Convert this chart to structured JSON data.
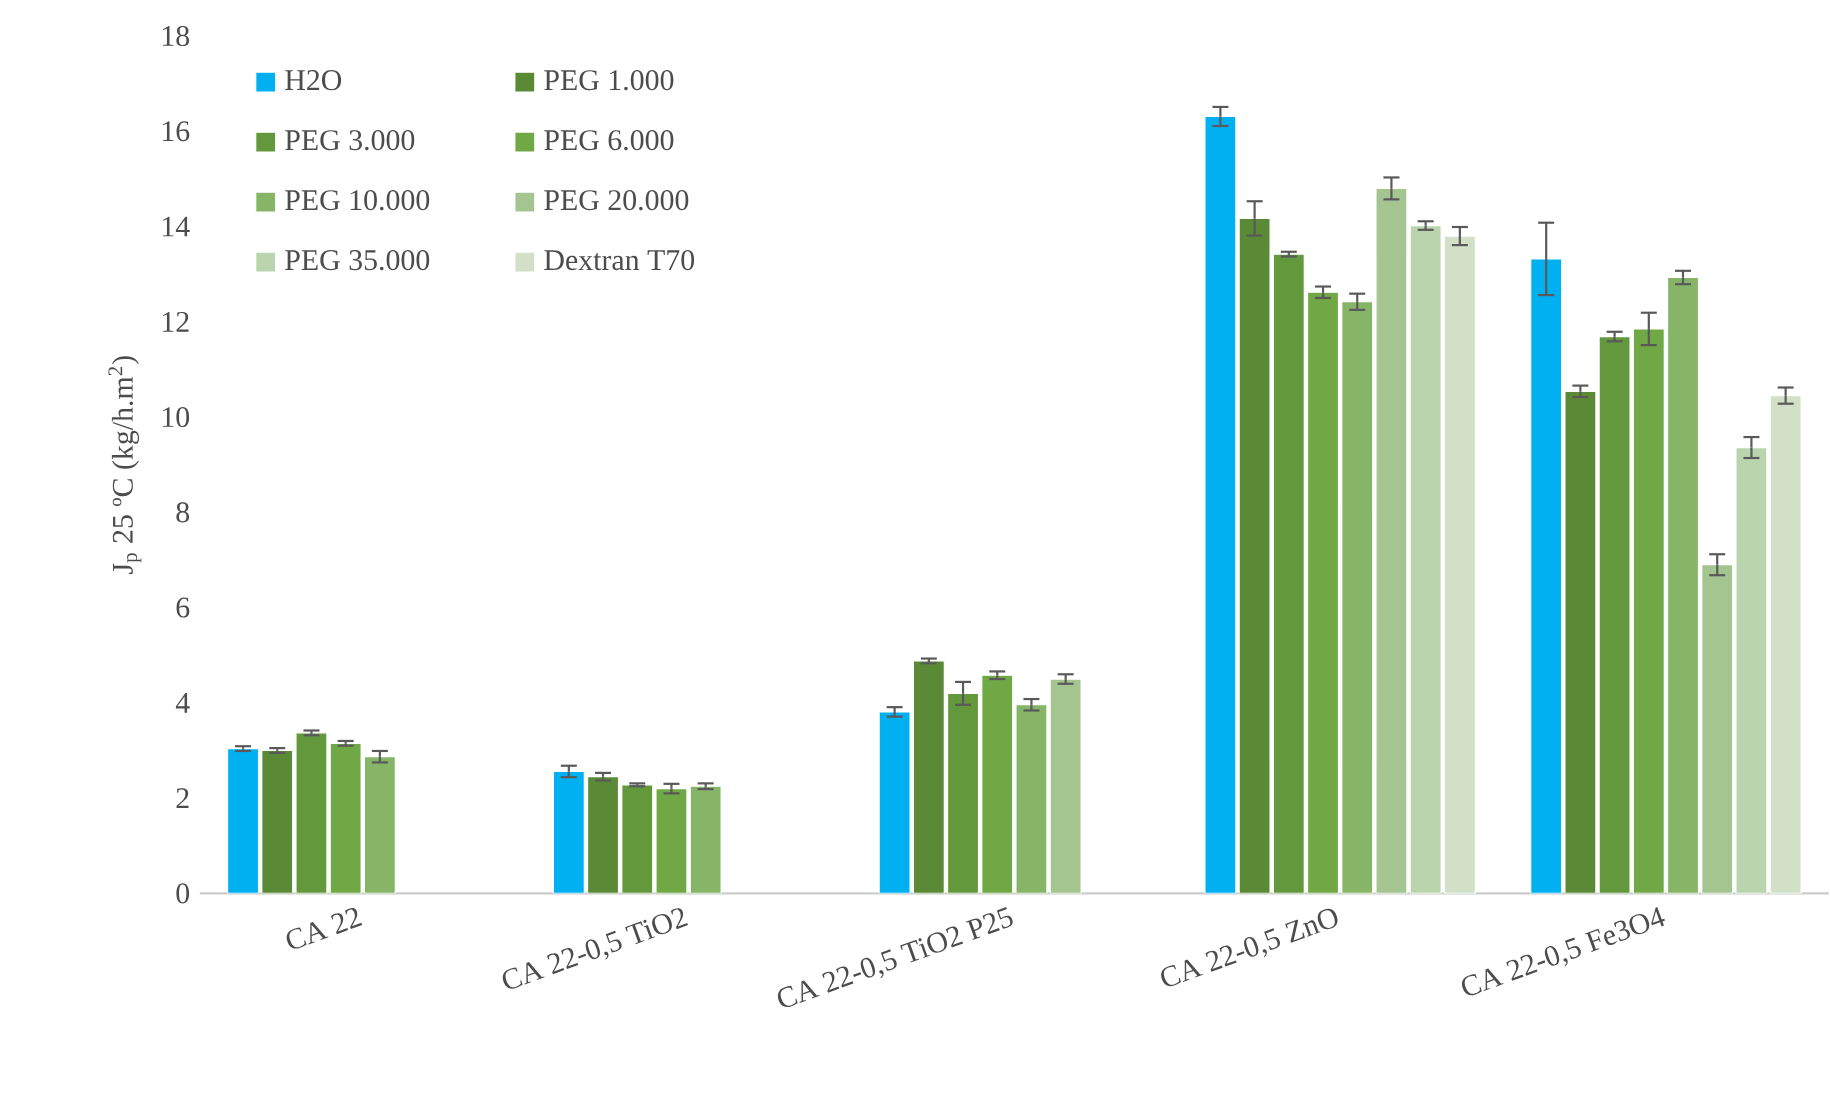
{
  "chart_data": {
    "type": "bar",
    "ylabel": "J$_{p}$ 25 ºC (kg/h.m$^{2}$)",
    "categories": [
      "CA 22",
      "CA 22-0,5 TiO2",
      "CA 22-0,5 TiO2 P25",
      "CA 22-0,5 ZnO",
      "CA 22-0,5 Fe3O4"
    ],
    "series": [
      {
        "name": "H2O",
        "color": "#00b0f0",
        "values": [
          3.04,
          2.56,
          3.81,
          16.31,
          13.32
        ],
        "errors": [
          0.05,
          0.12,
          0.1,
          0.2,
          0.76
        ]
      },
      {
        "name": "PEG 1.000",
        "color": "#5b8a37",
        "values": [
          3.0,
          2.45,
          4.88,
          14.17,
          10.54
        ],
        "errors": [
          0.05,
          0.08,
          0.05,
          0.36,
          0.12
        ]
      },
      {
        "name": "PEG 3.000",
        "color": "#64983d",
        "values": [
          3.37,
          2.28,
          4.2,
          13.42,
          11.69
        ],
        "errors": [
          0.05,
          0.03,
          0.24,
          0.05,
          0.1
        ]
      },
      {
        "name": "PEG 6.000",
        "color": "#70a845",
        "values": [
          3.15,
          2.2,
          4.58,
          12.62,
          11.85
        ],
        "errors": [
          0.05,
          0.1,
          0.08,
          0.12,
          0.34
        ]
      },
      {
        "name": "PEG 10.000",
        "color": "#86b567",
        "values": [
          2.87,
          2.25,
          3.96,
          12.42,
          12.93
        ],
        "errors": [
          0.12,
          0.06,
          0.12,
          0.17,
          0.14
        ]
      },
      {
        "name": "PEG 20.000",
        "color": "#a5c590",
        "values": [
          null,
          null,
          4.5,
          14.8,
          6.9
        ],
        "errors": [
          null,
          null,
          0.1,
          0.23,
          0.22
        ]
      },
      {
        "name": "PEG 35.000",
        "color": "#bad4ad",
        "values": [
          null,
          null,
          null,
          14.02,
          9.36
        ],
        "errors": [
          null,
          null,
          null,
          0.09,
          0.22
        ]
      },
      {
        "name": "Dextran T70",
        "color": "#d1e0c7",
        "values": [
          null,
          null,
          null,
          13.8,
          10.45
        ],
        "errors": [
          null,
          null,
          null,
          0.19,
          0.17
        ]
      }
    ],
    "ylim": [
      0,
      18
    ],
    "yticks": [
      0,
      2,
      4,
      6,
      8,
      10,
      12,
      14,
      16,
      18
    ],
    "grid": false,
    "legend": "top left"
  }
}
